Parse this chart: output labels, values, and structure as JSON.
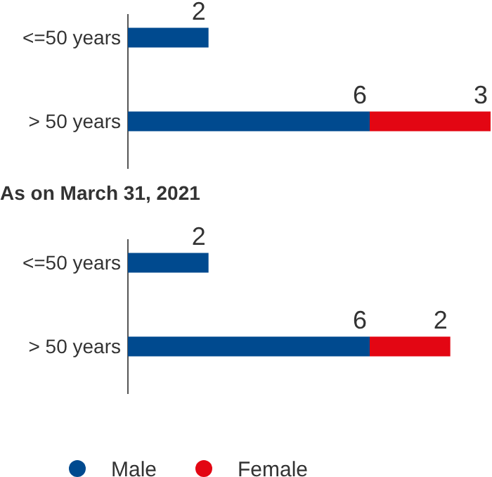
{
  "chart_data": [
    {
      "type": "bar",
      "orientation": "horizontal",
      "stacked": true,
      "categories": [
        "<=50 years",
        "> 50 years"
      ],
      "data_labels": true,
      "legend": false,
      "series": [
        {
          "color": "#004a8f",
          "values": [
            2,
            6
          ]
        },
        {
          "color": "#e30613",
          "values": [
            null,
            3
          ]
        }
      ]
    },
    {
      "type": "bar",
      "orientation": "horizontal",
      "stacked": true,
      "title": "As on March 31, 2021",
      "categories": [
        "<=50 years",
        "> 50 years"
      ],
      "data_labels": true,
      "legend": "bottom",
      "series": [
        {
          "name": "Male",
          "color": "#004a8f",
          "values": [
            2,
            6
          ]
        },
        {
          "name": "Female",
          "color": "#e30613",
          "values": [
            null,
            2
          ]
        }
      ]
    }
  ]
}
